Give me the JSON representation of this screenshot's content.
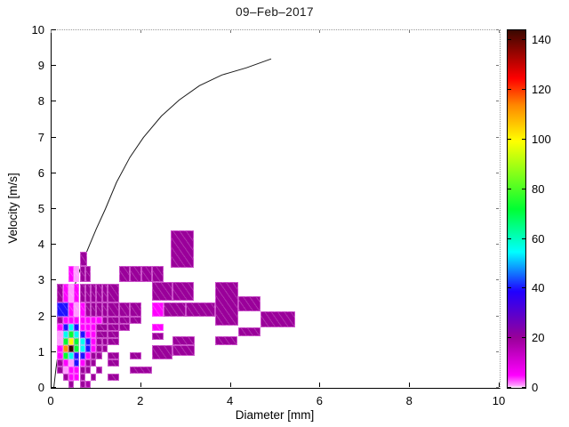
{
  "title": "09–Feb–2017",
  "axes": {
    "x": {
      "label": "Diameter [mm]",
      "range": [
        0,
        10
      ],
      "ticks": [
        0,
        2,
        4,
        6,
        8,
        10
      ]
    },
    "y": {
      "label": "Velocity [m/s]",
      "range": [
        0,
        10
      ],
      "ticks": [
        0,
        1,
        2,
        3,
        4,
        5,
        6,
        7,
        8,
        9,
        10
      ]
    }
  },
  "colorbar": {
    "ticks": [
      0,
      20,
      40,
      60,
      80,
      100,
      120,
      140
    ],
    "max": 144,
    "stops": [
      [
        0,
        "#ffffff"
      ],
      [
        0.007,
        "#ff9aff"
      ],
      [
        0.035,
        "#ff00ff"
      ],
      [
        0.14,
        "#990099"
      ],
      [
        0.27,
        "#2000ff"
      ],
      [
        0.38,
        "#00ffff"
      ],
      [
        0.5,
        "#00ff33"
      ],
      [
        0.69,
        "#ffff00"
      ],
      [
        0.79,
        "#ff8800"
      ],
      [
        0.865,
        "#ff0000"
      ],
      [
        1,
        "#3a0800"
      ]
    ]
  },
  "chart_data": {
    "type": "heatmap",
    "title": "09–Feb–2017",
    "xlabel": "Diameter [mm]",
    "ylabel": "Velocity [m/s]",
    "xlim": [
      0,
      10
    ],
    "ylim": [
      0,
      10
    ],
    "color_max": 144,
    "grid": false,
    "curve": {
      "name": "drop-terminal-velocity-curve",
      "points": [
        [
          0.05,
          0
        ],
        [
          0.1,
          0.55
        ],
        [
          0.15,
          1.0
        ],
        [
          0.25,
          1.62
        ],
        [
          0.35,
          2.05
        ],
        [
          0.45,
          2.55
        ],
        [
          0.55,
          3.0
        ],
        [
          0.7,
          3.55
        ],
        [
          0.85,
          4.0
        ],
        [
          1.0,
          4.45
        ],
        [
          1.2,
          5.0
        ],
        [
          1.45,
          5.75
        ],
        [
          1.75,
          6.45
        ],
        [
          2.05,
          7.0
        ],
        [
          2.45,
          7.6
        ],
        [
          2.85,
          8.05
        ],
        [
          3.3,
          8.45
        ],
        [
          3.8,
          8.75
        ],
        [
          4.35,
          8.95
        ],
        [
          4.9,
          9.2
        ]
      ]
    },
    "cells": [
      [
        0.375,
        0.5,
        0,
        0.2,
        20
      ],
      [
        0.625,
        0.75,
        0,
        0.2,
        20
      ],
      [
        0.75,
        0.875,
        0,
        0.2,
        18
      ],
      [
        0.25,
        0.375,
        0.2,
        0.4,
        20
      ],
      [
        0.375,
        0.5,
        0.2,
        0.4,
        5
      ],
      [
        0.5,
        0.625,
        0.2,
        0.4,
        5
      ],
      [
        0.625,
        0.75,
        0.2,
        0.4,
        20
      ],
      [
        0.875,
        1.0,
        0.2,
        0.4,
        20
      ],
      [
        1.25,
        1.5,
        0.2,
        0.4,
        20
      ],
      [
        0.125,
        0.25,
        0.4,
        0.6,
        20
      ],
      [
        0.25,
        0.375,
        0.4,
        0.6,
        1
      ],
      [
        0.375,
        0.5,
        0.4,
        0.6,
        5
      ],
      [
        0.5,
        0.625,
        0.4,
        0.6,
        5
      ],
      [
        0.625,
        0.75,
        0.4,
        0.6,
        20
      ],
      [
        0.75,
        0.875,
        0.4,
        0.6,
        20
      ],
      [
        1.0,
        1.125,
        0.4,
        0.6,
        20
      ],
      [
        1.75,
        2.25,
        0.4,
        0.6,
        20
      ],
      [
        0.125,
        0.25,
        0.6,
        0.8,
        20
      ],
      [
        0.25,
        0.375,
        0.6,
        0.8,
        5
      ],
      [
        0.375,
        0.5,
        0.6,
        0.8,
        1
      ],
      [
        0.5,
        0.625,
        0.6,
        0.8,
        40
      ],
      [
        0.625,
        0.75,
        0.6,
        0.8,
        5
      ],
      [
        0.75,
        0.875,
        0.6,
        0.8,
        20
      ],
      [
        0.875,
        1.0,
        0.6,
        0.8,
        20
      ],
      [
        1.25,
        1.5,
        0.6,
        0.8,
        20
      ],
      [
        0.125,
        0.25,
        0.8,
        1.0,
        5
      ],
      [
        0.25,
        0.375,
        0.8,
        1.0,
        72
      ],
      [
        0.375,
        0.5,
        0.8,
        1.0,
        56
      ],
      [
        0.5,
        0.625,
        0.8,
        1.0,
        40
      ],
      [
        0.625,
        0.75,
        0.8,
        1.0,
        40
      ],
      [
        0.75,
        0.875,
        0.8,
        1.0,
        5
      ],
      [
        0.875,
        1.0,
        0.8,
        1.0,
        20
      ],
      [
        1.0,
        1.125,
        0.8,
        1.0,
        20
      ],
      [
        1.25,
        1.5,
        0.8,
        1.0,
        20
      ],
      [
        1.75,
        2.0,
        0.8,
        1.0,
        20
      ],
      [
        2.25,
        2.7,
        0.8,
        1.2,
        20
      ],
      [
        2.7,
        3.2,
        0.9,
        1.2,
        20
      ],
      [
        0.125,
        0.25,
        1.0,
        1.2,
        5
      ],
      [
        0.25,
        0.375,
        1.0,
        1.2,
        113
      ],
      [
        0.375,
        0.5,
        1.0,
        1.2,
        144
      ],
      [
        0.5,
        0.625,
        1.0,
        1.2,
        72
      ],
      [
        0.625,
        0.75,
        1.0,
        1.2,
        56
      ],
      [
        0.75,
        0.875,
        1.0,
        1.2,
        40
      ],
      [
        0.875,
        1.0,
        1.0,
        1.2,
        5
      ],
      [
        1.0,
        1.125,
        1.0,
        1.2,
        20
      ],
      [
        1.125,
        1.25,
        1.0,
        1.2,
        20
      ],
      [
        0.125,
        0.25,
        1.2,
        1.4,
        1
      ],
      [
        0.25,
        0.375,
        1.2,
        1.4,
        72
      ],
      [
        0.375,
        0.5,
        1.2,
        1.4,
        100
      ],
      [
        0.5,
        0.625,
        1.2,
        1.4,
        72
      ],
      [
        0.625,
        0.75,
        1.2,
        1.4,
        56
      ],
      [
        0.75,
        0.875,
        1.2,
        1.4,
        40
      ],
      [
        0.875,
        1.0,
        1.2,
        1.4,
        5
      ],
      [
        1.0,
        1.125,
        1.2,
        1.4,
        20
      ],
      [
        1.125,
        1.25,
        1.2,
        1.4,
        20
      ],
      [
        1.25,
        1.5,
        1.2,
        1.4,
        20
      ],
      [
        2.25,
        2.5,
        1.35,
        1.55,
        20
      ],
      [
        2.7,
        3.2,
        1.2,
        1.45,
        20
      ],
      [
        3.65,
        4.15,
        1.2,
        1.45,
        20
      ],
      [
        0.125,
        0.25,
        1.4,
        1.6,
        1
      ],
      [
        0.25,
        0.375,
        1.4,
        1.6,
        56
      ],
      [
        0.375,
        0.5,
        1.4,
        1.6,
        72
      ],
      [
        0.5,
        0.625,
        1.4,
        1.6,
        56
      ],
      [
        0.625,
        0.75,
        1.4,
        1.6,
        40
      ],
      [
        0.75,
        0.875,
        1.4,
        1.6,
        5
      ],
      [
        0.875,
        1.0,
        1.4,
        1.6,
        5
      ],
      [
        1.0,
        1.25,
        1.4,
        1.6,
        20
      ],
      [
        1.25,
        1.5,
        1.4,
        1.6,
        20
      ],
      [
        4.17,
        4.67,
        1.45,
        1.7,
        20
      ],
      [
        0.125,
        0.25,
        1.6,
        1.8,
        5
      ],
      [
        0.25,
        0.375,
        1.6,
        1.8,
        40
      ],
      [
        0.375,
        0.5,
        1.6,
        1.8,
        56
      ],
      [
        0.5,
        0.625,
        1.6,
        1.8,
        40
      ],
      [
        0.625,
        0.75,
        1.6,
        1.8,
        5
      ],
      [
        0.75,
        0.875,
        1.6,
        1.8,
        5
      ],
      [
        0.875,
        1.0,
        1.6,
        1.8,
        5
      ],
      [
        1.0,
        1.25,
        1.6,
        1.8,
        20
      ],
      [
        1.25,
        1.5,
        1.6,
        1.8,
        20
      ],
      [
        1.5,
        1.75,
        1.6,
        1.8,
        20
      ],
      [
        2.25,
        2.5,
        1.6,
        1.8,
        5
      ],
      [
        0.125,
        0.25,
        1.8,
        2.0,
        20
      ],
      [
        0.25,
        0.375,
        1.8,
        2.0,
        5
      ],
      [
        0.375,
        0.5,
        1.8,
        2.0,
        5
      ],
      [
        0.5,
        0.625,
        1.8,
        2.0,
        5
      ],
      [
        0.625,
        0.75,
        1.8,
        2.0,
        5
      ],
      [
        0.75,
        0.875,
        1.8,
        2.0,
        5
      ],
      [
        0.875,
        1.0,
        1.8,
        2.0,
        5
      ],
      [
        1.0,
        1.125,
        1.8,
        2.0,
        5
      ],
      [
        1.125,
        1.25,
        1.8,
        2.0,
        20
      ],
      [
        1.25,
        1.5,
        1.8,
        2.0,
        20
      ],
      [
        1.5,
        1.75,
        1.8,
        2.0,
        20
      ],
      [
        1.75,
        2.0,
        1.8,
        2.0,
        20
      ],
      [
        4.67,
        5.43,
        1.7,
        2.15,
        20
      ],
      [
        0.125,
        0.375,
        2.0,
        2.4,
        40
      ],
      [
        0.375,
        0.5,
        2.0,
        2.4,
        5
      ],
      [
        0.5,
        0.625,
        2.0,
        2.4,
        1
      ],
      [
        0.625,
        0.75,
        2.0,
        2.4,
        5
      ],
      [
        0.75,
        0.875,
        2.0,
        2.4,
        20
      ],
      [
        0.875,
        1.0,
        2.0,
        2.4,
        20
      ],
      [
        1.0,
        1.125,
        2.0,
        2.4,
        20
      ],
      [
        1.125,
        1.25,
        2.0,
        2.4,
        20
      ],
      [
        1.25,
        1.5,
        2.0,
        2.4,
        20
      ],
      [
        1.5,
        1.75,
        2.0,
        2.4,
        20
      ],
      [
        1.75,
        2.0,
        2.0,
        2.4,
        20
      ],
      [
        2.25,
        2.5,
        2.0,
        2.4,
        5
      ],
      [
        2.5,
        3.0,
        2.0,
        2.4,
        20
      ],
      [
        3.0,
        3.65,
        2.0,
        2.4,
        20
      ],
      [
        3.65,
        4.17,
        1.75,
        2.95,
        20
      ],
      [
        4.17,
        4.67,
        2.15,
        2.55,
        20
      ],
      [
        0.125,
        0.25,
        2.4,
        2.9,
        20
      ],
      [
        0.25,
        0.375,
        2.4,
        2.9,
        5
      ],
      [
        0.375,
        0.5,
        2.4,
        2.9,
        1
      ],
      [
        0.5,
        0.625,
        2.4,
        2.9,
        5
      ],
      [
        0.625,
        0.75,
        2.4,
        2.9,
        20
      ],
      [
        0.75,
        0.875,
        2.4,
        2.9,
        20
      ],
      [
        0.875,
        1.0,
        2.4,
        2.9,
        20
      ],
      [
        1.0,
        1.125,
        2.4,
        2.9,
        20
      ],
      [
        1.125,
        1.25,
        2.4,
        2.9,
        20
      ],
      [
        1.25,
        1.5,
        2.4,
        2.9,
        20
      ],
      [
        2.25,
        2.7,
        2.45,
        2.95,
        20
      ],
      [
        2.7,
        3.17,
        2.45,
        2.95,
        20
      ],
      [
        0.375,
        0.5,
        2.95,
        3.4,
        5
      ],
      [
        0.5,
        0.625,
        2.95,
        3.4,
        1
      ],
      [
        0.625,
        0.75,
        2.95,
        3.4,
        20
      ],
      [
        0.75,
        0.875,
        2.95,
        3.4,
        20
      ],
      [
        1.5,
        1.75,
        2.95,
        3.4,
        20
      ],
      [
        1.75,
        2.0,
        2.95,
        3.4,
        20
      ],
      [
        2.0,
        2.25,
        2.95,
        3.4,
        20
      ],
      [
        2.25,
        2.5,
        2.95,
        3.4,
        20
      ],
      [
        0.625,
        0.8,
        3.4,
        3.8,
        20
      ],
      [
        2.65,
        3.17,
        3.35,
        4.4,
        20
      ]
    ]
  }
}
